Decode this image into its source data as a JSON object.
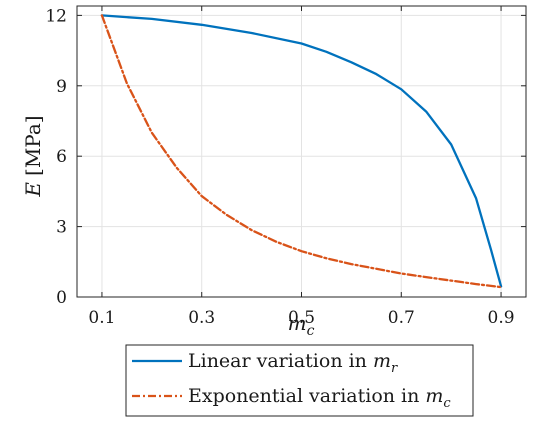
{
  "chart_data": {
    "type": "line",
    "xlabel": {
      "main": "m",
      "sub": "c"
    },
    "ylabel": {
      "main": "E",
      "unit": "[MPa]"
    },
    "xlim": [
      0.05,
      0.95
    ],
    "ylim": [
      0,
      12.4
    ],
    "xticks": [
      0.1,
      0.3,
      0.5,
      0.7,
      0.9
    ],
    "xtick_labels": [
      "0.1",
      "0.3",
      "0.5",
      "0.7",
      "0.9"
    ],
    "yticks": [
      0,
      3,
      6,
      9,
      12
    ],
    "ytick_labels": [
      "0",
      "3",
      "6",
      "9",
      "12"
    ],
    "grid": true,
    "legend_position": "below",
    "series": [
      {
        "name": "Linear variation in m_r",
        "legend_main": "Linear variation in ",
        "legend_var": "m",
        "legend_sub": "r",
        "color": "#0072BD",
        "style": "solid",
        "x": [
          0.1,
          0.2,
          0.3,
          0.4,
          0.5,
          0.55,
          0.6,
          0.65,
          0.7,
          0.75,
          0.8,
          0.85,
          0.88,
          0.9
        ],
        "y": [
          12.0,
          11.85,
          11.6,
          11.25,
          10.8,
          10.45,
          10.0,
          9.5,
          8.85,
          7.9,
          6.5,
          4.2,
          2.0,
          0.45
        ]
      },
      {
        "name": "Exponential variation in m_c",
        "legend_main": "Exponential variation in ",
        "legend_var": "m",
        "legend_sub": "c",
        "color": "#D95319",
        "style": "dashdot",
        "x": [
          0.1,
          0.15,
          0.2,
          0.25,
          0.3,
          0.35,
          0.4,
          0.45,
          0.5,
          0.55,
          0.6,
          0.65,
          0.7,
          0.75,
          0.8,
          0.85,
          0.9
        ],
        "y": [
          12.0,
          9.1,
          7.0,
          5.5,
          4.3,
          3.5,
          2.85,
          2.35,
          1.95,
          1.65,
          1.4,
          1.2,
          1.0,
          0.85,
          0.7,
          0.55,
          0.42
        ]
      }
    ]
  }
}
